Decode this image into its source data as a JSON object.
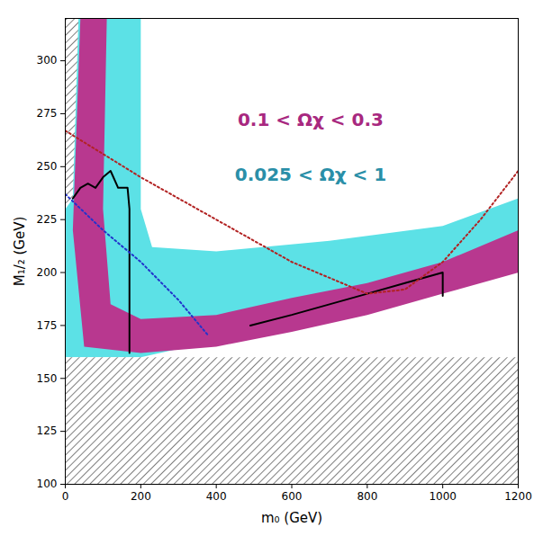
{
  "chart_data": {
    "type": "region",
    "xlabel": "m₀ (GeV)",
    "ylabel": "M₁/₂ (GeV)",
    "xlim": [
      0,
      1200
    ],
    "xticks": [
      0,
      200,
      400,
      600,
      800,
      1000,
      1200
    ],
    "ylim": [
      100,
      320
    ],
    "yticks": [
      100,
      125,
      150,
      175,
      200,
      225,
      250,
      275,
      300
    ],
    "grid": false,
    "series": [
      {
        "type": "area",
        "color": "#5ce1e6",
        "x": [
          10,
          200,
          200,
          230,
          400,
          700,
          1000,
          1200,
          1200,
          1000,
          800,
          600,
          400,
          200,
          0,
          0
        ],
        "y": [
          320,
          320,
          230,
          212,
          210,
          215,
          222,
          235,
          205,
          195,
          185,
          175,
          168,
          160,
          160,
          250
        ]
      },
      {
        "type": "area",
        "color": "#b8388f",
        "x": [
          40,
          110,
          100,
          120,
          200,
          400,
          600,
          800,
          1000,
          1200,
          1200,
          1000,
          800,
          600,
          400,
          200,
          50,
          20
        ],
        "y": [
          320,
          320,
          230,
          185,
          178,
          180,
          188,
          195,
          205,
          220,
          200,
          190,
          180,
          172,
          165,
          162,
          165,
          220
        ]
      },
      {
        "type": "area",
        "color": "#000000",
        "line_style": "hatched",
        "x": [
          0,
          35,
          20,
          0
        ],
        "y": [
          320,
          320,
          235,
          230
        ]
      },
      {
        "type": "area",
        "color": "#000000",
        "line_style": "hatched",
        "x": [
          0,
          1200,
          1200,
          0
        ],
        "y": [
          100,
          100,
          160,
          160
        ]
      },
      {
        "type": "line",
        "color": "#000000",
        "line_style": "solid",
        "x": [
          20,
          40,
          60,
          80,
          100,
          120,
          140,
          165,
          170,
          170
        ],
        "y": [
          235,
          240,
          242,
          240,
          245,
          248,
          240,
          240,
          230,
          162
        ]
      },
      {
        "type": "line",
        "color": "#000000",
        "line_style": "solid",
        "x": [
          490,
          600,
          700,
          800,
          900,
          1000,
          1000
        ],
        "y": [
          175,
          180,
          185,
          190,
          195,
          200,
          189
        ]
      },
      {
        "type": "line",
        "color": "#b22222",
        "line_style": "dotted",
        "x": [
          0,
          200,
          400,
          600,
          800,
          900,
          1000,
          1100,
          1200
        ],
        "y": [
          267,
          245,
          225,
          205,
          190,
          192,
          205,
          225,
          248
        ]
      },
      {
        "type": "line",
        "color": "#2233cc",
        "line_style": "dotted",
        "x": [
          0,
          100,
          200,
          300,
          380
        ],
        "y": [
          237,
          220,
          205,
          187,
          170
        ]
      }
    ],
    "annotations": [
      {
        "text": "0.1 < Ωχ < 0.3",
        "x": 650,
        "y": 272,
        "color": "#a8287f"
      },
      {
        "text": "0.025 < Ωχ < 1",
        "x": 650,
        "y": 246,
        "color": "#2a8fa8"
      }
    ]
  }
}
